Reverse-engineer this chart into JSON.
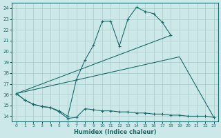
{
  "xlabel": "Humidex (Indice chaleur)",
  "bg_color": "#cce8e8",
  "line_color": "#1a6b6b",
  "grid_color": "#aacccc",
  "xlim": [
    -0.5,
    23.5
  ],
  "ylim": [
    13.5,
    24.5
  ],
  "yticks": [
    14,
    15,
    16,
    17,
    18,
    19,
    20,
    21,
    22,
    23,
    24
  ],
  "xticks": [
    0,
    1,
    2,
    3,
    4,
    5,
    6,
    7,
    8,
    9,
    10,
    11,
    12,
    13,
    14,
    15,
    16,
    17,
    18,
    19,
    20,
    21,
    22,
    23
  ],
  "series_main": {
    "x": [
      0,
      1,
      2,
      3,
      4,
      5,
      6,
      7,
      8,
      9,
      10,
      11,
      12,
      13,
      14,
      15,
      16,
      17,
      18
    ],
    "y": [
      16.1,
      15.5,
      15.1,
      14.9,
      14.8,
      14.5,
      14.0,
      17.4,
      19.2,
      20.6,
      22.8,
      22.8,
      20.5,
      23.0,
      24.1,
      23.7,
      23.5,
      22.7,
      21.5
    ]
  },
  "series_flat": {
    "x": [
      0,
      1,
      2,
      3,
      4,
      5,
      6,
      7,
      8,
      9,
      10,
      11,
      12,
      13,
      14,
      15,
      16,
      17,
      18,
      19,
      20,
      21,
      22,
      23
    ],
    "y": [
      16.1,
      15.5,
      15.1,
      14.9,
      14.8,
      14.4,
      13.8,
      13.9,
      14.7,
      14.6,
      14.5,
      14.5,
      14.4,
      14.4,
      14.3,
      14.3,
      14.2,
      14.2,
      14.1,
      14.1,
      14.0,
      14.0,
      14.0,
      13.9
    ]
  },
  "series_diag1": {
    "x": [
      0,
      18
    ],
    "y": [
      16.1,
      21.5
    ]
  },
  "series_diag2": {
    "x": [
      0,
      19,
      23
    ],
    "y": [
      16.1,
      19.5,
      13.9
    ]
  }
}
